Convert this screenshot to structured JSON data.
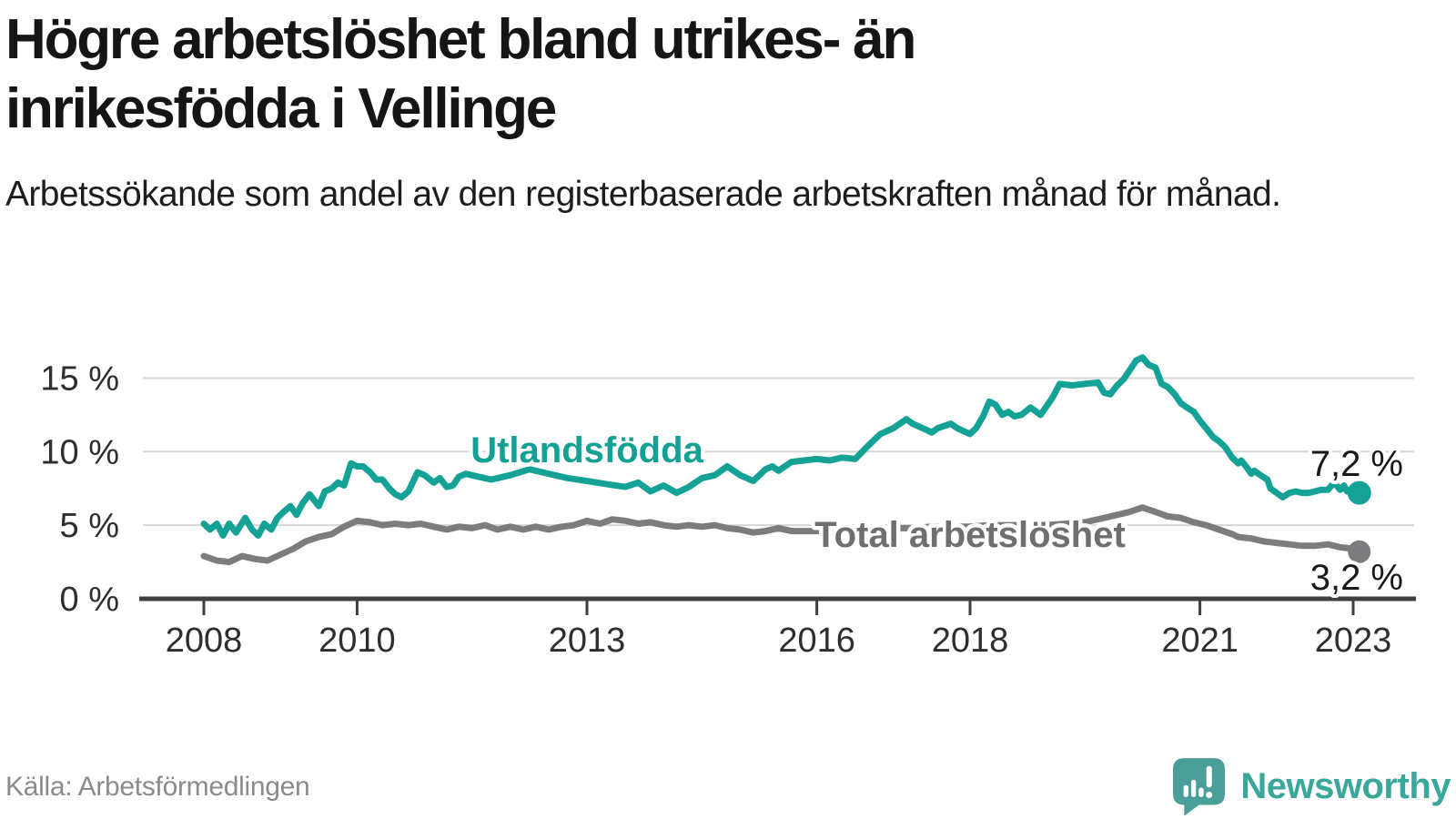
{
  "title": "Högre arbetslöshet bland utrikes- än inrikesfödda i Vellinge",
  "subtitle": "Arbetssökande som andel av den registerbaserade arbetskraften månad för månad.",
  "source": "Källa: Arbetsförmedlingen",
  "branding": {
    "name": "Newsworthy",
    "icon": "bar-chart-speech-bubble-icon",
    "icon_color": "#4a9f9b",
    "wordmark_color": "#3aa79b"
  },
  "colors": {
    "background": "#ffffff",
    "gridline": "#d6d6d6",
    "axis": "#3f3f3f",
    "tick_label": "#2e2e2e",
    "end_label": "#1a1a1a"
  },
  "chart_data": {
    "type": "line",
    "x_unit": "year (monthly data)",
    "y_unit": "percent of registered labour force",
    "xlim": [
      2007.2,
      2023.8
    ],
    "ylim": [
      0,
      17.5
    ],
    "grid": "horizontal",
    "legend_position": "inline-labels",
    "x_ticks": [
      {
        "value": 2008,
        "label": "2008"
      },
      {
        "value": 2010,
        "label": "2010"
      },
      {
        "value": 2013,
        "label": "2013"
      },
      {
        "value": 2016,
        "label": "2016"
      },
      {
        "value": 2018,
        "label": "2018"
      },
      {
        "value": 2021,
        "label": "2021"
      },
      {
        "value": 2023,
        "label": "2023"
      }
    ],
    "y_ticks": [
      {
        "value": 0,
        "label": "0 %"
      },
      {
        "value": 5,
        "label": "5 %"
      },
      {
        "value": 10,
        "label": "10 %"
      },
      {
        "value": 15,
        "label": "15 %"
      }
    ],
    "series": [
      {
        "name": "Utlandsfödda",
        "color": "#15a296",
        "label_color": "#13a193",
        "end_label": "7,2 %",
        "end_value": 7.2,
        "points": [
          [
            2008.0,
            5.1
          ],
          [
            2008.08,
            4.7
          ],
          [
            2008.17,
            5.1
          ],
          [
            2008.25,
            4.3
          ],
          [
            2008.33,
            5.1
          ],
          [
            2008.42,
            4.5
          ],
          [
            2008.54,
            5.5
          ],
          [
            2008.63,
            4.7
          ],
          [
            2008.71,
            4.3
          ],
          [
            2008.79,
            5.1
          ],
          [
            2008.88,
            4.7
          ],
          [
            2008.96,
            5.5
          ],
          [
            2009.04,
            5.9
          ],
          [
            2009.13,
            6.3
          ],
          [
            2009.21,
            5.7
          ],
          [
            2009.29,
            6.5
          ],
          [
            2009.38,
            7.1
          ],
          [
            2009.5,
            6.3
          ],
          [
            2009.58,
            7.3
          ],
          [
            2009.67,
            7.5
          ],
          [
            2009.75,
            7.9
          ],
          [
            2009.83,
            7.7
          ],
          [
            2009.92,
            9.2
          ],
          [
            2010.0,
            9.0
          ],
          [
            2010.08,
            9.0
          ],
          [
            2010.17,
            8.6
          ],
          [
            2010.25,
            8.1
          ],
          [
            2010.33,
            8.1
          ],
          [
            2010.42,
            7.5
          ],
          [
            2010.5,
            7.1
          ],
          [
            2010.58,
            6.9
          ],
          [
            2010.67,
            7.3
          ],
          [
            2010.79,
            8.6
          ],
          [
            2010.88,
            8.4
          ],
          [
            2011.0,
            7.9
          ],
          [
            2011.08,
            8.2
          ],
          [
            2011.17,
            7.6
          ],
          [
            2011.25,
            7.7
          ],
          [
            2011.33,
            8.3
          ],
          [
            2011.42,
            8.5
          ],
          [
            2011.58,
            8.3
          ],
          [
            2011.75,
            8.1
          ],
          [
            2012.0,
            8.4
          ],
          [
            2012.25,
            8.8
          ],
          [
            2012.5,
            8.5
          ],
          [
            2012.75,
            8.2
          ],
          [
            2013.0,
            8.0
          ],
          [
            2013.25,
            7.8
          ],
          [
            2013.5,
            7.6
          ],
          [
            2013.67,
            7.9
          ],
          [
            2013.83,
            7.3
          ],
          [
            2014.0,
            7.7
          ],
          [
            2014.17,
            7.2
          ],
          [
            2014.33,
            7.6
          ],
          [
            2014.5,
            8.2
          ],
          [
            2014.67,
            8.4
          ],
          [
            2014.83,
            9.0
          ],
          [
            2015.0,
            8.4
          ],
          [
            2015.17,
            8.0
          ],
          [
            2015.33,
            8.8
          ],
          [
            2015.42,
            9.0
          ],
          [
            2015.5,
            8.7
          ],
          [
            2015.67,
            9.3
          ],
          [
            2015.83,
            9.4
          ],
          [
            2016.0,
            9.5
          ],
          [
            2016.17,
            9.4
          ],
          [
            2016.33,
            9.6
          ],
          [
            2016.5,
            9.5
          ],
          [
            2016.67,
            10.4
          ],
          [
            2016.83,
            11.2
          ],
          [
            2017.0,
            11.6
          ],
          [
            2017.17,
            12.2
          ],
          [
            2017.25,
            11.9
          ],
          [
            2017.42,
            11.5
          ],
          [
            2017.5,
            11.3
          ],
          [
            2017.58,
            11.6
          ],
          [
            2017.75,
            11.9
          ],
          [
            2017.83,
            11.6
          ],
          [
            2018.0,
            11.2
          ],
          [
            2018.08,
            11.6
          ],
          [
            2018.17,
            12.4
          ],
          [
            2018.25,
            13.4
          ],
          [
            2018.33,
            13.2
          ],
          [
            2018.42,
            12.5
          ],
          [
            2018.5,
            12.7
          ],
          [
            2018.58,
            12.4
          ],
          [
            2018.67,
            12.5
          ],
          [
            2018.79,
            13.0
          ],
          [
            2018.92,
            12.5
          ],
          [
            2019.08,
            13.7
          ],
          [
            2019.17,
            14.6
          ],
          [
            2019.33,
            14.5
          ],
          [
            2019.5,
            14.6
          ],
          [
            2019.67,
            14.7
          ],
          [
            2019.75,
            14.0
          ],
          [
            2019.83,
            13.9
          ],
          [
            2019.92,
            14.5
          ],
          [
            2020.0,
            14.9
          ],
          [
            2020.08,
            15.5
          ],
          [
            2020.17,
            16.2
          ],
          [
            2020.25,
            16.4
          ],
          [
            2020.33,
            15.9
          ],
          [
            2020.42,
            15.7
          ],
          [
            2020.5,
            14.6
          ],
          [
            2020.58,
            14.4
          ],
          [
            2020.67,
            13.9
          ],
          [
            2020.75,
            13.3
          ],
          [
            2020.83,
            13.0
          ],
          [
            2020.92,
            12.7
          ],
          [
            2021.0,
            12.1
          ],
          [
            2021.08,
            11.6
          ],
          [
            2021.17,
            11.0
          ],
          [
            2021.25,
            10.7
          ],
          [
            2021.33,
            10.3
          ],
          [
            2021.42,
            9.6
          ],
          [
            2021.5,
            9.2
          ],
          [
            2021.54,
            9.4
          ],
          [
            2021.63,
            8.8
          ],
          [
            2021.67,
            8.5
          ],
          [
            2021.71,
            8.7
          ],
          [
            2021.79,
            8.4
          ],
          [
            2021.88,
            8.1
          ],
          [
            2021.92,
            7.5
          ],
          [
            2022.0,
            7.2
          ],
          [
            2022.08,
            6.9
          ],
          [
            2022.17,
            7.2
          ],
          [
            2022.25,
            7.3
          ],
          [
            2022.33,
            7.2
          ],
          [
            2022.42,
            7.2
          ],
          [
            2022.5,
            7.3
          ],
          [
            2022.58,
            7.4
          ],
          [
            2022.67,
            7.4
          ],
          [
            2022.75,
            7.9
          ],
          [
            2022.83,
            7.4
          ],
          [
            2022.88,
            7.7
          ],
          [
            2022.92,
            7.3
          ],
          [
            2023.0,
            7.5
          ],
          [
            2023.08,
            7.2
          ]
        ]
      },
      {
        "name": "Total arbetslöshet",
        "color": "#7c7c7e",
        "label_color": "#6f6f72",
        "end_label": "3,2 %",
        "end_value": 3.2,
        "points": [
          [
            2008.0,
            2.9
          ],
          [
            2008.17,
            2.6
          ],
          [
            2008.33,
            2.5
          ],
          [
            2008.5,
            2.9
          ],
          [
            2008.67,
            2.7
          ],
          [
            2008.83,
            2.6
          ],
          [
            2009.0,
            3.0
          ],
          [
            2009.17,
            3.4
          ],
          [
            2009.33,
            3.9
          ],
          [
            2009.5,
            4.2
          ],
          [
            2009.67,
            4.4
          ],
          [
            2009.83,
            4.9
          ],
          [
            2010.0,
            5.3
          ],
          [
            2010.17,
            5.2
          ],
          [
            2010.33,
            5.0
          ],
          [
            2010.5,
            5.1
          ],
          [
            2010.67,
            5.0
          ],
          [
            2010.83,
            5.1
          ],
          [
            2011.0,
            4.9
          ],
          [
            2011.17,
            4.7
          ],
          [
            2011.33,
            4.9
          ],
          [
            2011.5,
            4.8
          ],
          [
            2011.67,
            5.0
          ],
          [
            2011.83,
            4.7
          ],
          [
            2012.0,
            4.9
          ],
          [
            2012.17,
            4.7
          ],
          [
            2012.33,
            4.9
          ],
          [
            2012.5,
            4.7
          ],
          [
            2012.67,
            4.9
          ],
          [
            2012.83,
            5.0
          ],
          [
            2013.0,
            5.3
          ],
          [
            2013.17,
            5.1
          ],
          [
            2013.33,
            5.4
          ],
          [
            2013.5,
            5.3
          ],
          [
            2013.67,
            5.1
          ],
          [
            2013.83,
            5.2
          ],
          [
            2014.0,
            5.0
          ],
          [
            2014.17,
            4.9
          ],
          [
            2014.33,
            5.0
          ],
          [
            2014.5,
            4.9
          ],
          [
            2014.67,
            5.0
          ],
          [
            2014.83,
            4.8
          ],
          [
            2015.0,
            4.7
          ],
          [
            2015.17,
            4.5
          ],
          [
            2015.33,
            4.6
          ],
          [
            2015.5,
            4.8
          ],
          [
            2015.67,
            4.6
          ],
          [
            2015.83,
            4.6
          ],
          [
            2016.0,
            4.6
          ],
          [
            2016.25,
            4.7
          ],
          [
            2016.5,
            4.7
          ],
          [
            2016.75,
            4.7
          ],
          [
            2017.0,
            4.8
          ],
          [
            2017.25,
            4.8
          ],
          [
            2017.5,
            4.9
          ],
          [
            2017.75,
            4.9
          ],
          [
            2018.0,
            4.9
          ],
          [
            2018.25,
            5.0
          ],
          [
            2018.5,
            5.0
          ],
          [
            2018.75,
            5.0
          ],
          [
            2019.0,
            5.0
          ],
          [
            2019.25,
            5.1
          ],
          [
            2019.5,
            5.2
          ],
          [
            2019.75,
            5.5
          ],
          [
            2019.92,
            5.7
          ],
          [
            2020.08,
            5.9
          ],
          [
            2020.25,
            6.2
          ],
          [
            2020.42,
            5.9
          ],
          [
            2020.58,
            5.6
          ],
          [
            2020.75,
            5.5
          ],
          [
            2020.92,
            5.2
          ],
          [
            2021.08,
            5.0
          ],
          [
            2021.25,
            4.7
          ],
          [
            2021.42,
            4.4
          ],
          [
            2021.5,
            4.2
          ],
          [
            2021.67,
            4.1
          ],
          [
            2021.83,
            3.9
          ],
          [
            2022.0,
            3.8
          ],
          [
            2022.17,
            3.7
          ],
          [
            2022.33,
            3.6
          ],
          [
            2022.5,
            3.6
          ],
          [
            2022.67,
            3.7
          ],
          [
            2022.83,
            3.5
          ],
          [
            2023.0,
            3.4
          ],
          [
            2023.08,
            3.2
          ]
        ]
      }
    ]
  }
}
